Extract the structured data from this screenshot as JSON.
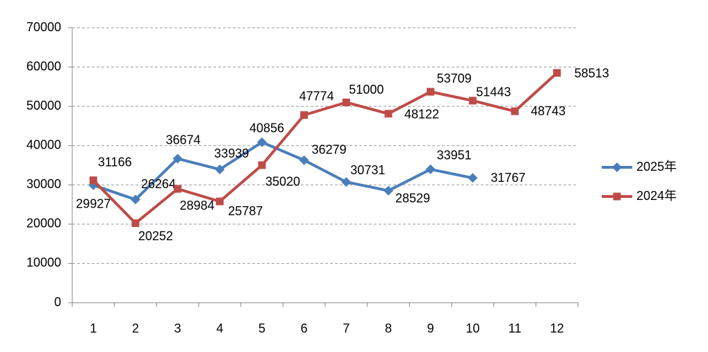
{
  "chart_data": {
    "type": "line",
    "categories": [
      "1",
      "2",
      "3",
      "4",
      "5",
      "6",
      "7",
      "8",
      "9",
      "10",
      "11",
      "12"
    ],
    "series": [
      {
        "name": "2025年",
        "color": "#4a7ebb",
        "marker": "diamond",
        "values": [
          29927,
          26264,
          36674,
          33939,
          40856,
          36279,
          30731,
          28529,
          33951,
          31767,
          null,
          null
        ]
      },
      {
        "name": "2024年",
        "color": "#be4b48",
        "marker": "square",
        "values": [
          31166,
          20252,
          28984,
          25787,
          35020,
          47774,
          51000,
          48122,
          53709,
          51443,
          48743,
          58513
        ]
      }
    ],
    "ylim": [
      0,
      70000
    ],
    "yticks": [
      0,
      10000,
      20000,
      30000,
      40000,
      50000,
      60000,
      70000
    ],
    "grid": true,
    "legend": "right"
  }
}
